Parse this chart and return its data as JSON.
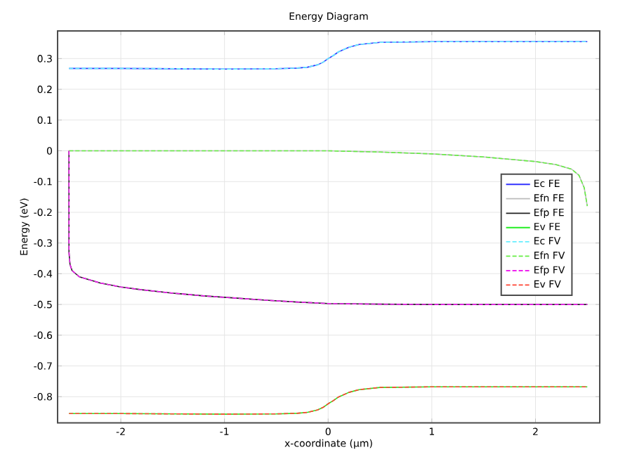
{
  "chart_data": {
    "type": "line",
    "title": "Energy Diagram",
    "xlabel": "x-coordinate (µm)",
    "ylabel": "Energy (eV)",
    "xlim": [
      -2.61,
      2.62
    ],
    "ylim": [
      -0.885,
      0.39
    ],
    "xticks": [
      -2,
      -1,
      0,
      1,
      2
    ],
    "yticks": [
      -0.8,
      -0.7,
      -0.6,
      -0.5,
      -0.4,
      -0.3,
      -0.2,
      -0.1,
      0,
      0.1,
      0.2,
      0.3
    ],
    "grid": true,
    "legend": "right",
    "marker": "none",
    "series": [
      {
        "name": "Ec FE",
        "color": "#3333ff",
        "line_style": "solid",
        "x": [
          -2.5,
          -2,
          -1.5,
          -1,
          -0.5,
          -0.3,
          -0.2,
          -0.1,
          -0.05,
          0,
          0.05,
          0.1,
          0.2,
          0.3,
          0.5,
          1,
          1.5,
          2,
          2.5
        ],
        "values": [
          0.268,
          0.268,
          0.267,
          0.266,
          0.267,
          0.269,
          0.272,
          0.28,
          0.288,
          0.3,
          0.31,
          0.322,
          0.337,
          0.346,
          0.353,
          0.355,
          0.355,
          0.355,
          0.355
        ]
      },
      {
        "name": "Efn FE",
        "color": "#bbbbbb",
        "line_style": "solid",
        "x": [
          -2.5,
          -2,
          -1,
          0,
          0.5,
          1,
          1.5,
          2,
          2.2,
          2.35,
          2.42,
          2.47,
          2.5
        ],
        "values": [
          0,
          0,
          0,
          0,
          -0.004,
          -0.01,
          -0.02,
          -0.035,
          -0.045,
          -0.06,
          -0.08,
          -0.12,
          -0.18
        ]
      },
      {
        "name": "Efp FE",
        "color": "#222222",
        "line_style": "solid",
        "x": [
          -2.5,
          -2.5,
          -2.49,
          -2.47,
          -2.4,
          -2.2,
          -2,
          -1.8,
          -1.5,
          -1.2,
          -0.9,
          -0.6,
          -0.3,
          0,
          0.5,
          1,
          1.5,
          2,
          2.5
        ],
        "values": [
          0,
          -0.33,
          -0.37,
          -0.39,
          -0.41,
          -0.43,
          -0.443,
          -0.452,
          -0.463,
          -0.472,
          -0.479,
          -0.486,
          -0.492,
          -0.497,
          -0.499,
          -0.5,
          -0.5,
          -0.5,
          -0.5
        ]
      },
      {
        "name": "Ev FE",
        "color": "#22ee22",
        "line_style": "solid",
        "x": [
          -2.5,
          -2,
          -1.5,
          -1,
          -0.5,
          -0.3,
          -0.2,
          -0.1,
          -0.05,
          0,
          0.05,
          0.1,
          0.2,
          0.3,
          0.5,
          1,
          1.5,
          2,
          2.5
        ],
        "values": [
          -0.855,
          -0.855,
          -0.856,
          -0.857,
          -0.856,
          -0.854,
          -0.851,
          -0.843,
          -0.835,
          -0.823,
          -0.813,
          -0.801,
          -0.786,
          -0.777,
          -0.77,
          -0.768,
          -0.768,
          -0.768,
          -0.768
        ]
      },
      {
        "name": "Ec FV",
        "color": "#66eeff",
        "line_style": "dashed",
        "x": [
          -2.5,
          -2,
          -1.5,
          -1,
          -0.5,
          -0.3,
          -0.2,
          -0.1,
          -0.05,
          0,
          0.05,
          0.1,
          0.2,
          0.3,
          0.5,
          1,
          1.5,
          2,
          2.5
        ],
        "values": [
          0.268,
          0.268,
          0.267,
          0.266,
          0.267,
          0.269,
          0.272,
          0.28,
          0.288,
          0.3,
          0.31,
          0.322,
          0.337,
          0.346,
          0.353,
          0.355,
          0.355,
          0.355,
          0.355
        ]
      },
      {
        "name": "Efn FV",
        "color": "#66ee44",
        "line_style": "dashed",
        "x": [
          -2.5,
          -2,
          -1,
          0,
          0.5,
          1,
          1.5,
          2,
          2.2,
          2.35,
          2.42,
          2.47,
          2.5
        ],
        "values": [
          0,
          0,
          0,
          0,
          -0.004,
          -0.01,
          -0.02,
          -0.035,
          -0.045,
          -0.06,
          -0.08,
          -0.12,
          -0.18
        ]
      },
      {
        "name": "Efp FV",
        "color": "#ee22ee",
        "line_style": "dashed",
        "x": [
          -2.5,
          -2.5,
          -2.49,
          -2.47,
          -2.4,
          -2.2,
          -2,
          -1.8,
          -1.5,
          -1.2,
          -0.9,
          -0.6,
          -0.3,
          0,
          0.5,
          1,
          1.5,
          2,
          2.5
        ],
        "values": [
          0,
          -0.33,
          -0.37,
          -0.39,
          -0.41,
          -0.43,
          -0.443,
          -0.452,
          -0.463,
          -0.472,
          -0.479,
          -0.486,
          -0.492,
          -0.497,
          -0.499,
          -0.5,
          -0.5,
          -0.5,
          -0.5
        ]
      },
      {
        "name": "Ev FV",
        "color": "#ff4433",
        "line_style": "dashed",
        "x": [
          -2.5,
          -2,
          -1.5,
          -1,
          -0.5,
          -0.3,
          -0.2,
          -0.1,
          -0.05,
          0,
          0.05,
          0.1,
          0.2,
          0.3,
          0.5,
          1,
          1.5,
          2,
          2.5
        ],
        "values": [
          -0.855,
          -0.855,
          -0.856,
          -0.857,
          -0.856,
          -0.854,
          -0.851,
          -0.843,
          -0.835,
          -0.823,
          -0.813,
          -0.801,
          -0.786,
          -0.777,
          -0.77,
          -0.768,
          -0.768,
          -0.768,
          -0.768
        ]
      }
    ]
  }
}
